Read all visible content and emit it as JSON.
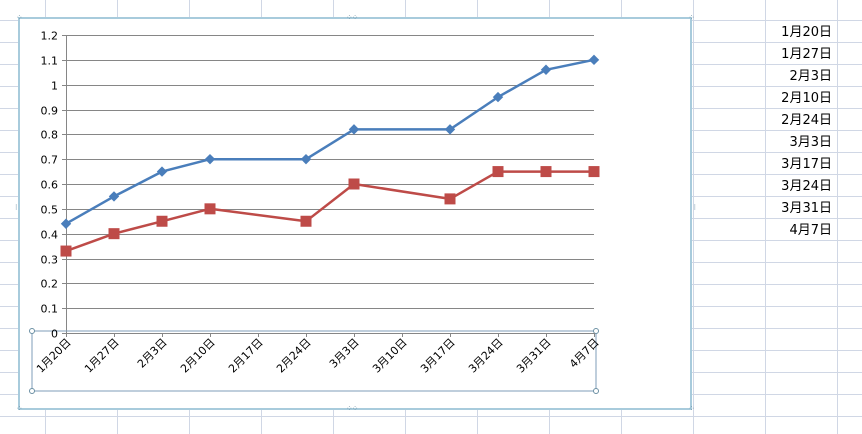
{
  "colors": {
    "series1": "#4a7ebb",
    "series2": "#be4b48",
    "gridline": "#868686",
    "frame": "#a8cbdc",
    "sheet_grid": "#d0d7e5"
  },
  "spreadsheet": {
    "column_values": [
      "1月20日",
      "1月27日",
      "2月3日",
      "2月10日",
      "2月24日",
      "3月3日",
      "3月17日",
      "3月24日",
      "3月31日",
      "4月7日"
    ]
  },
  "chart_data": {
    "type": "line",
    "categories": [
      "1月20日",
      "1月27日",
      "2月3日",
      "2月10日",
      "2月17日",
      "2月24日",
      "3月3日",
      "3月10日",
      "3月17日",
      "3月24日",
      "3月31日",
      "4月7日"
    ],
    "series": [
      {
        "marker": "diamond",
        "color": "#4a7ebb",
        "points": [
          {
            "x": "1月20日",
            "y": 0.44
          },
          {
            "x": "1月27日",
            "y": 0.55
          },
          {
            "x": "2月3日",
            "y": 0.65
          },
          {
            "x": "2月10日",
            "y": 0.7
          },
          {
            "x": "2月24日",
            "y": 0.7
          },
          {
            "x": "3月3日",
            "y": 0.82
          },
          {
            "x": "3月17日",
            "y": 0.82
          },
          {
            "x": "3月24日",
            "y": 0.95
          },
          {
            "x": "3月31日",
            "y": 1.06
          },
          {
            "x": "4月7日",
            "y": 1.1
          }
        ]
      },
      {
        "marker": "square",
        "color": "#be4b48",
        "points": [
          {
            "x": "1月20日",
            "y": 0.33
          },
          {
            "x": "1月27日",
            "y": 0.4
          },
          {
            "x": "2月3日",
            "y": 0.45
          },
          {
            "x": "2月10日",
            "y": 0.5
          },
          {
            "x": "2月24日",
            "y": 0.45
          },
          {
            "x": "3月3日",
            "y": 0.6
          },
          {
            "x": "3月17日",
            "y": 0.54
          },
          {
            "x": "3月24日",
            "y": 0.65
          },
          {
            "x": "3月31日",
            "y": 0.65
          },
          {
            "x": "4月7日",
            "y": 0.65
          }
        ]
      }
    ],
    "yticks": [
      "0",
      "0.1",
      "0.2",
      "0.3",
      "0.4",
      "0.5",
      "0.6",
      "0.7",
      "0.8",
      "0.9",
      "1",
      "1.1",
      "1.2"
    ],
    "ylim": [
      0,
      1.2
    ],
    "grid": true,
    "legend": "none"
  }
}
